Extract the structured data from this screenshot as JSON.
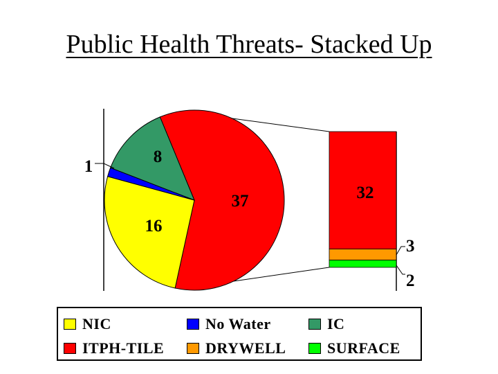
{
  "title": "Public Health Threats- Stacked Up",
  "colors": {
    "NIC": "#ffff00",
    "No Water": "#0000ff",
    "IC": "#339966",
    "ITPH-TILE": "#ff0000",
    "DRYWELL": "#ff9900",
    "SURFACE": "#00ff00"
  },
  "chart_data": [
    {
      "type": "pie",
      "title": "Public Health Threats- Stacked Up",
      "slices": [
        {
          "label": "ITPH-TILE",
          "value": 37
        },
        {
          "label": "NIC",
          "value": 16
        },
        {
          "label": "No Water",
          "value": 1
        },
        {
          "label": "IC",
          "value": 8
        }
      ]
    },
    {
      "type": "bar",
      "stacked": true,
      "series": [
        {
          "name": "SURFACE",
          "values": [
            2
          ]
        },
        {
          "name": "DRYWELL",
          "values": [
            3
          ]
        },
        {
          "name": "ITPH-TILE",
          "values": [
            32
          ]
        }
      ]
    }
  ],
  "legend": {
    "placement": "bottom",
    "items": [
      "NIC",
      "No Water",
      "IC",
      "ITPH-TILE",
      "DRYWELL",
      "SURFACE"
    ]
  }
}
